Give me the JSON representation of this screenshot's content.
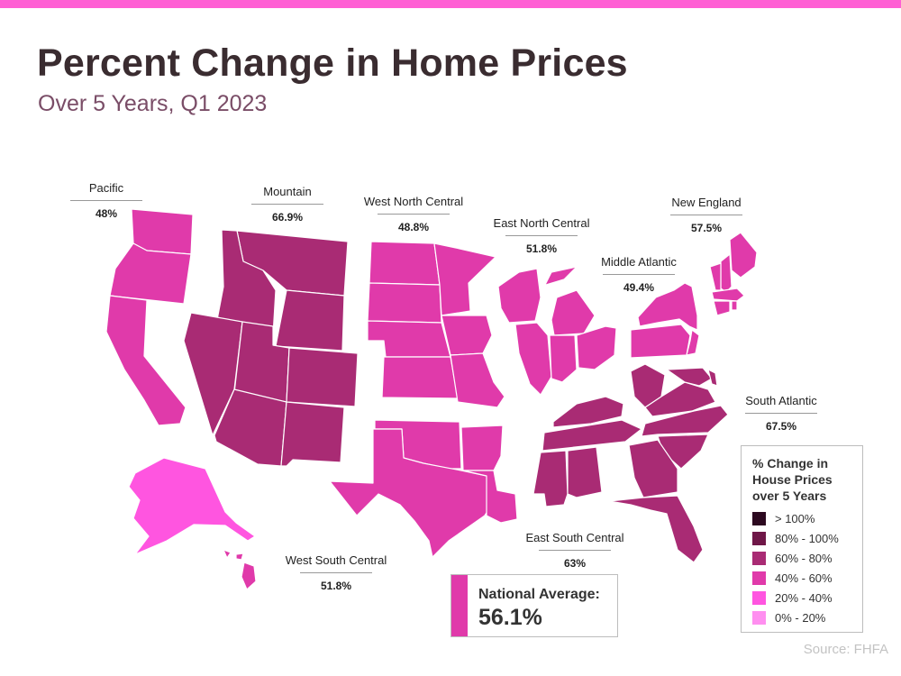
{
  "header": {
    "title": "Percent Change in Home Prices",
    "subtitle": "Over 5 Years, Q1 2023"
  },
  "colors": {
    "top_bar": "#ff5fd4",
    "band_80_100": "#6f1748",
    "band_60_80": "#a92b74",
    "band_40_60": "#e03aaa",
    "band_20_40": "#ff55e0"
  },
  "regions": [
    {
      "key": "pacific",
      "name": "Pacific",
      "value": "48%",
      "band": "40% - 60%"
    },
    {
      "key": "mountain",
      "name": "Mountain",
      "value": "66.9%",
      "band": "60% - 80%"
    },
    {
      "key": "west_north_central",
      "name": "West North Central",
      "value": "48.8%",
      "band": "40% - 60%"
    },
    {
      "key": "east_north_central",
      "name": "East North Central",
      "value": "51.8%",
      "band": "40% - 60%"
    },
    {
      "key": "middle_atlantic",
      "name": "Middle Atlantic",
      "value": "49.4%",
      "band": "40% - 60%"
    },
    {
      "key": "new_england",
      "name": "New England",
      "value": "57.5%",
      "band": "40% - 60%"
    },
    {
      "key": "south_atlantic",
      "name": "South Atlantic",
      "value": "67.5%",
      "band": "60% - 80%"
    },
    {
      "key": "east_south_central",
      "name": "East South Central",
      "value": "63%",
      "band": "60% - 80%"
    },
    {
      "key": "west_south_central",
      "name": "West South Central",
      "value": "51.8%",
      "band": "40% - 60%"
    }
  ],
  "legend": {
    "title": "% Change in House Prices over 5 Years",
    "items": [
      {
        "label": "> 100%",
        "color": "#2d0a20"
      },
      {
        "label": "80% - 100%",
        "color": "#6f1748"
      },
      {
        "label": "60% - 80%",
        "color": "#a92b74"
      },
      {
        "label": "40% - 60%",
        "color": "#e03aaa"
      },
      {
        "label": "20% - 40%",
        "color": "#ff55e0"
      },
      {
        "label": "0% - 20%",
        "color": "#ff8ff0"
      }
    ]
  },
  "national": {
    "label": "National Average:",
    "value": "56.1%"
  },
  "source": "Source: FHFA"
}
